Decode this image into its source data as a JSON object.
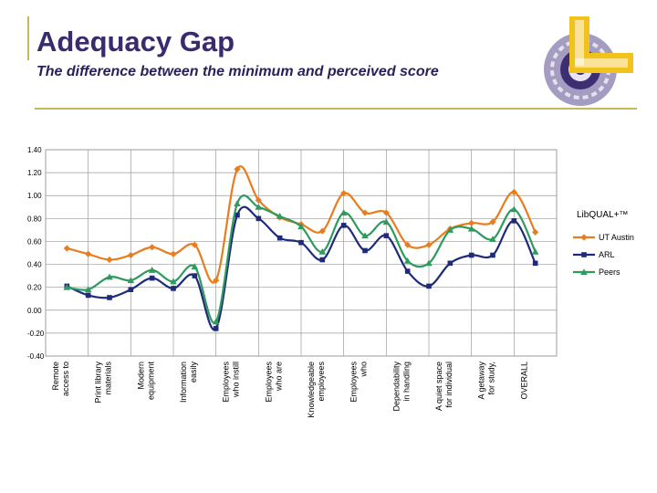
{
  "slide": {
    "title": "Adequacy Gap",
    "subtitle": "The difference between the minimum and perceived score"
  },
  "logo": {
    "icon": "libqual-logo-icon"
  },
  "chart_data": {
    "type": "line",
    "title": "",
    "xlabel": "",
    "ylabel": "",
    "ylim": [
      -0.4,
      1.4
    ],
    "yticks": [
      -0.4,
      -0.2,
      0.0,
      0.2,
      0.4,
      0.6,
      0.8,
      1.0,
      1.2,
      1.4
    ],
    "ytick_labels": [
      "-0.40",
      "-0.20",
      "0.00",
      "0.20",
      "0.40",
      "0.60",
      "0.80",
      "1.00",
      "1.20",
      "1.40"
    ],
    "categories": [
      [
        "Remote",
        "access to"
      ],
      [
        "Print library",
        "materials"
      ],
      [
        "Modern",
        "equipment"
      ],
      [
        "Information",
        "easily"
      ],
      [
        "Employees",
        "who instill"
      ],
      [
        "Employees",
        "who are"
      ],
      [
        "Knowledgeable",
        "employees"
      ],
      [
        "Employees",
        "who"
      ],
      [
        "Dependability",
        "in handling"
      ],
      [
        "A quiet space",
        "for individual"
      ],
      [
        "A getaway",
        "for study,"
      ],
      [
        "OVERALL"
      ]
    ],
    "x": [
      0,
      0.5,
      1,
      1.5,
      2,
      2.5,
      3,
      3.5,
      4,
      4.5,
      5,
      5.5,
      6,
      6.5,
      7,
      7.5,
      8,
      8.5,
      9,
      9.5,
      10,
      10.5,
      11,
      11.25
    ],
    "legend_title": "LibQUAL+™",
    "legend_position": "right",
    "series": [
      {
        "name": "UT Austin",
        "color": "#e87d1e",
        "marker": "diamond",
        "values": [
          0.54,
          0.49,
          0.44,
          0.48,
          0.55,
          0.49,
          0.57,
          0.26,
          1.23,
          0.96,
          0.81,
          0.75,
          0.69,
          1.02,
          0.85,
          0.85,
          0.57,
          0.57,
          0.71,
          0.76,
          0.77,
          1.03,
          0.68,
          null
        ]
      },
      {
        "name": "ARL",
        "color": "#1f2a7a",
        "marker": "square",
        "values": [
          0.21,
          0.13,
          0.11,
          0.18,
          0.28,
          0.19,
          0.3,
          -0.16,
          0.83,
          0.8,
          0.63,
          0.59,
          0.44,
          0.74,
          0.52,
          0.65,
          0.34,
          0.21,
          0.41,
          0.48,
          0.48,
          0.78,
          0.41,
          null
        ]
      },
      {
        "name": "Peers",
        "color": "#2e9a5e",
        "marker": "triangle",
        "values": [
          0.2,
          0.18,
          0.29,
          0.26,
          0.35,
          0.25,
          0.38,
          -0.1,
          0.93,
          0.9,
          0.82,
          0.73,
          0.51,
          0.85,
          0.65,
          0.77,
          0.43,
          0.41,
          0.7,
          0.71,
          0.62,
          0.88,
          0.51,
          null
        ]
      }
    ]
  }
}
